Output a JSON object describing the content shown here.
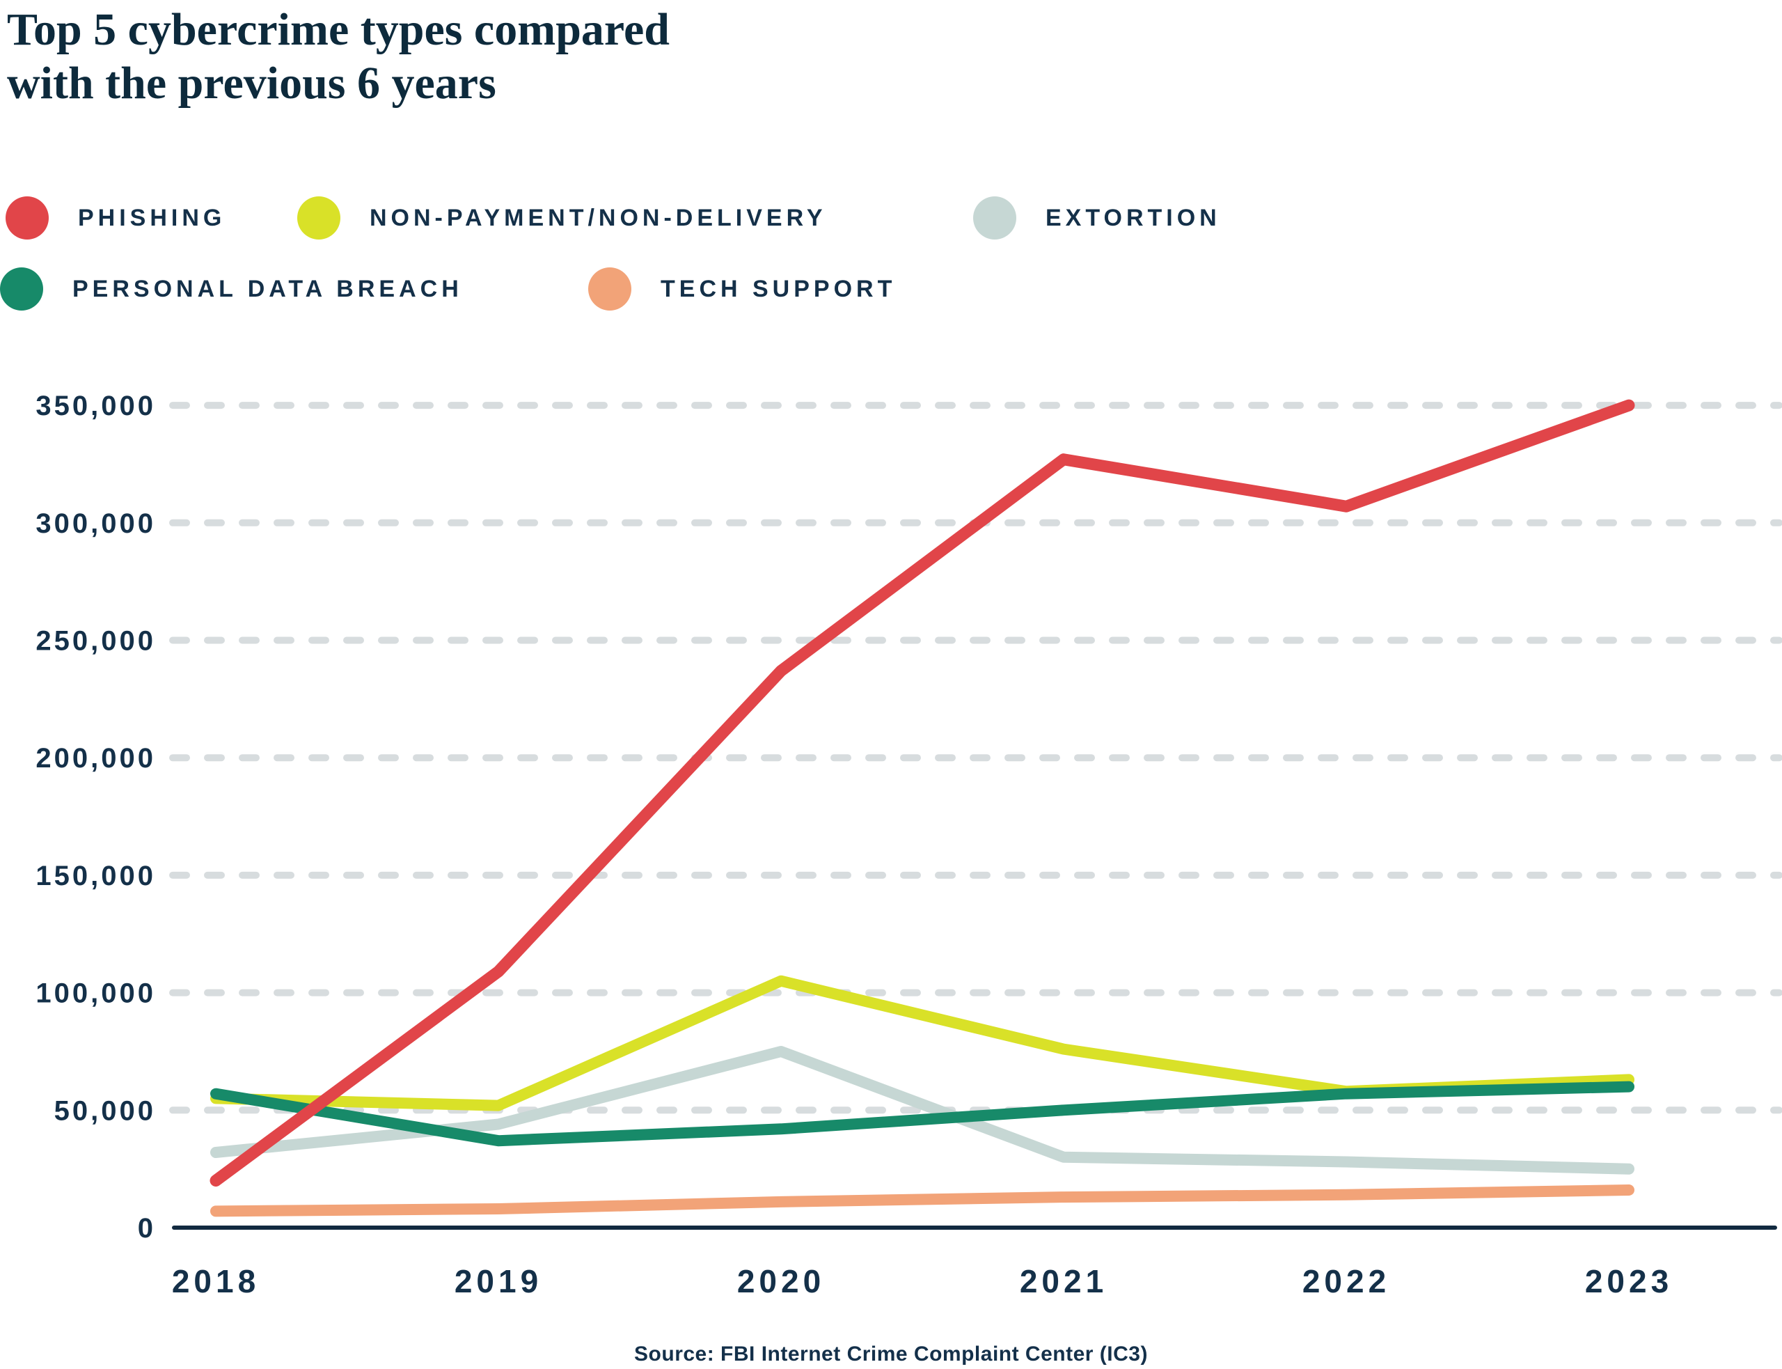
{
  "title": {
    "line1": "Top 5 cybercrime types compared",
    "line2": "with the previous 6 years"
  },
  "source": "Source: FBI Internet Crime Complaint Center (IC3)",
  "colors": {
    "phishing": "#E14549",
    "non_payment": "#D9E128",
    "extortion": "#C6D7D4",
    "personal_data_breach": "#178A69",
    "tech_support": "#F2A378",
    "gridline": "#D7DCDE",
    "axis_line": "#122A40",
    "text": "#143049",
    "title_text": "#0D2A3C",
    "background": "#FFFFFF"
  },
  "legend": {
    "items": [
      {
        "id": "phishing",
        "label": "PHISHING",
        "color": "#E14549",
        "row": 1
      },
      {
        "id": "non_payment",
        "label": "NON-PAYMENT/NON-DELIVERY",
        "color": "#D9E128",
        "row": 1
      },
      {
        "id": "extortion",
        "label": "EXTORTION",
        "color": "#C6D7D4",
        "row": 1
      },
      {
        "id": "personal_data_breach",
        "label": "PERSONAL DATA BREACH",
        "color": "#178A69",
        "row": 2
      },
      {
        "id": "tech_support",
        "label": "TECH SUPPORT",
        "color": "#F2A378",
        "row": 2
      }
    ]
  },
  "chart_data": {
    "type": "line",
    "title": "Top 5 cybercrime types compared with the previous 6 years",
    "xlabel": "",
    "ylabel": "",
    "x": [
      "2018",
      "2019",
      "2020",
      "2021",
      "2022",
      "2023"
    ],
    "series": [
      {
        "id": "phishing",
        "name": "Phishing",
        "color": "#E14549",
        "values": [
          20000,
          109000,
          237000,
          327000,
          307000,
          350000
        ]
      },
      {
        "id": "non_payment",
        "name": "Non-payment/Non-delivery",
        "color": "#D9E128",
        "values": [
          55000,
          52000,
          105000,
          76000,
          58000,
          63000
        ]
      },
      {
        "id": "extortion",
        "name": "Extortion",
        "color": "#C6D7D4",
        "values": [
          32000,
          44000,
          75000,
          30000,
          28000,
          25000
        ]
      },
      {
        "id": "personal_data_breach",
        "name": "Personal data breach",
        "color": "#178A69",
        "values": [
          57000,
          37000,
          42000,
          50000,
          57000,
          60000
        ]
      },
      {
        "id": "tech_support",
        "name": "Tech support",
        "color": "#F2A378",
        "values": [
          7000,
          8000,
          11000,
          13000,
          14000,
          16000
        ]
      }
    ],
    "draw_order": [
      "extortion",
      "non_payment",
      "personal_data_breach",
      "tech_support",
      "phishing"
    ],
    "ylim": [
      0,
      370000
    ],
    "yticks": [
      {
        "value": 350000,
        "label": "350,000"
      },
      {
        "value": 300000,
        "label": "300,000"
      },
      {
        "value": 250000,
        "label": "250,000"
      },
      {
        "value": 200000,
        "label": "200,000"
      },
      {
        "value": 150000,
        "label": "150,000"
      },
      {
        "value": 100000,
        "label": "100,000"
      },
      {
        "value": 50000,
        "label": "50,000"
      },
      {
        "value": 0,
        "label": "0"
      }
    ],
    "grid": "horizontal-dashed",
    "legend_position": "top"
  }
}
